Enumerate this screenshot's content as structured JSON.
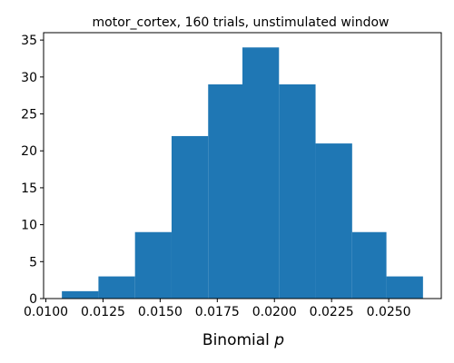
{
  "chart_data": {
    "type": "bar",
    "title": "motor_cortex, 160 trials, unstimulated window",
    "xlabel_text": "Binomial ",
    "xlabel_var": "p",
    "ylabel": "",
    "bin_edges": [
      0.0107,
      0.0123,
      0.0139,
      0.0155,
      0.0171,
      0.0186,
      0.0202,
      0.0218,
      0.0234,
      0.0249,
      0.0265
    ],
    "counts": [
      1,
      3,
      9,
      22,
      29,
      34,
      29,
      21,
      9,
      3
    ],
    "xlim": [
      0.0099,
      0.0273
    ],
    "ylim": [
      0,
      36
    ],
    "xticks": [
      0.01,
      0.0125,
      0.015,
      0.0175,
      0.02,
      0.0225,
      0.025
    ],
    "xtick_labels": [
      "0.0100",
      "0.0125",
      "0.0150",
      "0.0175",
      "0.0200",
      "0.0225",
      "0.0250"
    ],
    "yticks": [
      0,
      5,
      10,
      15,
      20,
      25,
      30,
      35
    ],
    "ytick_labels": [
      "0",
      "5",
      "10",
      "15",
      "20",
      "25",
      "30",
      "35"
    ],
    "bar_color": "#1f77b4",
    "grid": false,
    "legend": "none"
  }
}
